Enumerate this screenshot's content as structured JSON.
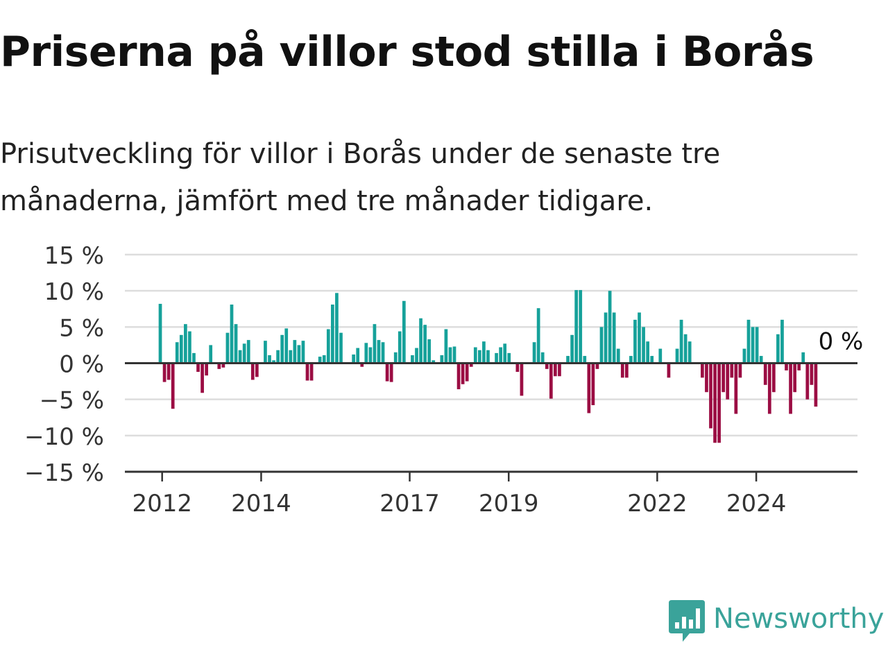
{
  "title": "Priserna på villor stod stilla i Borås",
  "subtitle_lines": [
    "Prisutveckling för villor i Borås under de senaste tre",
    "månaderna, jämfört med tre månader tidigare."
  ],
  "brand": {
    "name": "Newsworthy",
    "icon": "newsworthy-logo-icon",
    "color": "#3aa39a"
  },
  "chart_data": {
    "type": "bar",
    "colors": {
      "positive": "#16a19a",
      "negative": "#9b0d43",
      "grid": "#dddddd",
      "axis": "#333333"
    },
    "y_unit": " %",
    "ylim": [
      -15,
      15
    ],
    "y_ticks": [
      15,
      10,
      5,
      0,
      -5,
      -10,
      -15
    ],
    "y_tick_labels": [
      "15 %",
      "10 %",
      "5 %",
      "0 %",
      "−5 %",
      "−10 %",
      "−15 %"
    ],
    "x_ticks": [
      {
        "year": 2012,
        "label": "2012"
      },
      {
        "year": 2014,
        "label": "2014"
      },
      {
        "year": 2017,
        "label": "2017"
      },
      {
        "year": 2019,
        "label": "2019"
      },
      {
        "year": 2022,
        "label": "2022"
      },
      {
        "year": 2024,
        "label": "2024"
      }
    ],
    "x_start_year": 2011.92,
    "x_end_year": 2025.33,
    "series": [
      {
        "values": [
          8.2,
          -2.6,
          -2.3,
          -6.3,
          2.9,
          3.9,
          5.4,
          4.4,
          1.4,
          -1.2,
          -4.1,
          -1.7,
          2.5,
          0.0,
          -0.8,
          -0.6,
          4.2,
          8.1,
          5.4,
          1.8,
          2.7,
          3.2,
          -2.3,
          -1.9,
          0.0,
          3.1,
          1.1,
          0.4,
          1.8,
          3.9,
          4.8,
          1.8,
          3.2,
          2.5,
          3.1,
          -2.4,
          -2.4,
          0.0,
          0.9,
          1.1,
          4.7,
          8.1,
          9.7,
          4.2,
          0.0,
          0.0,
          1.2,
          2.1,
          -0.5,
          2.8,
          2.2,
          5.4,
          3.2,
          2.9,
          -2.5,
          -2.6,
          1.5,
          4.4,
          8.6,
          0.0,
          1.1,
          2.1,
          6.2,
          5.3,
          3.3,
          0.4,
          0.0,
          1.1,
          4.7,
          2.2,
          2.3,
          -3.6,
          -2.9,
          -2.5,
          -0.5,
          2.2,
          1.8,
          3.0,
          1.8,
          0.0,
          1.4,
          2.2,
          2.7,
          1.4,
          0.0,
          -1.2,
          -4.5,
          0.0,
          0.0,
          2.9,
          7.6,
          1.5,
          -0.8,
          -4.9,
          -1.8,
          -1.8,
          0.0,
          1.0,
          3.9,
          10.1,
          10.1,
          1.0,
          -6.9,
          -5.8,
          -0.8,
          5.0,
          7.0,
          10.0,
          7.0,
          2.0,
          -2.0,
          -2.0,
          1.0,
          6.0,
          7.0,
          5.0,
          3.0,
          1.0,
          0.0,
          2.0,
          0.0,
          -2.0,
          0.0,
          2.0,
          6.0,
          4.0,
          3.0,
          0.0,
          0.0,
          -2.0,
          -4.0,
          -9.0,
          -11.0,
          -11.0,
          -4.0,
          -5.0,
          -2.0,
          -7.0,
          -2.0,
          2.0,
          6.0,
          5.0,
          5.0,
          1.0,
          -3.0,
          -7.0,
          -4.0,
          4.0,
          6.0,
          -1.0,
          -7.0,
          -4.0,
          -1.0,
          1.5,
          -5.0,
          -3.0,
          -6.0,
          0.0
        ]
      }
    ],
    "annotation": {
      "label": "0 %",
      "value": 0
    }
  }
}
